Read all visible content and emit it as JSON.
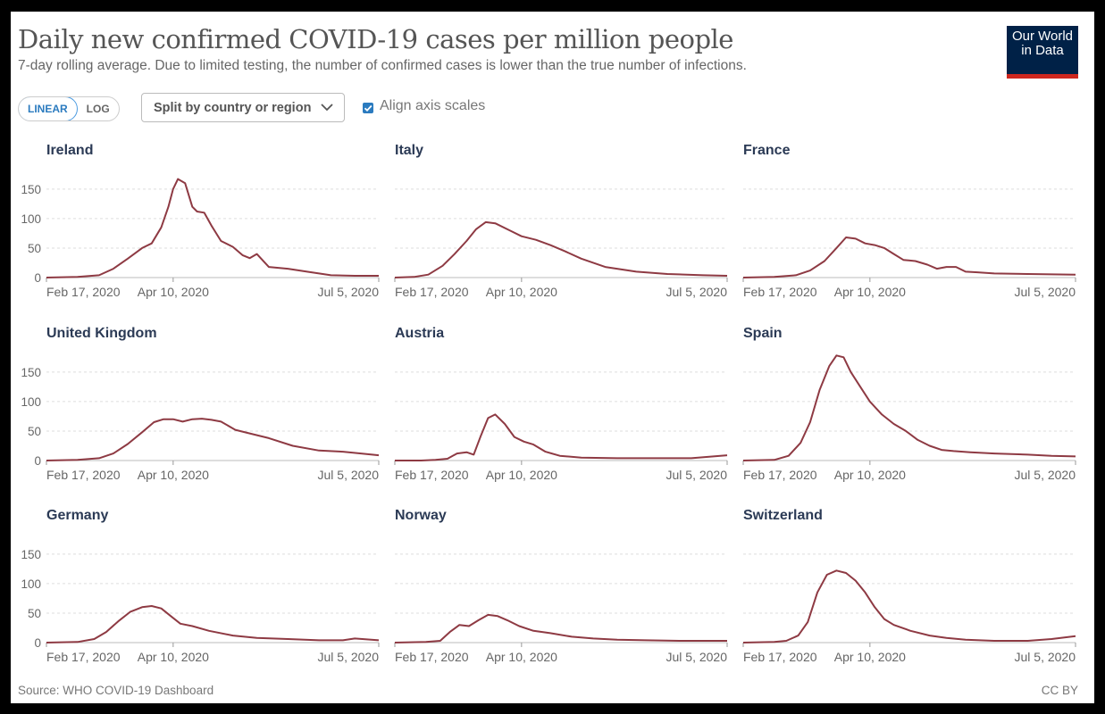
{
  "header": {
    "title": "Daily new confirmed COVID-19 cases per million people",
    "subtitle": "7-day rolling average. Due to limited testing, the number of confirmed cases is lower than the true number of infections."
  },
  "logo": {
    "line1": "Our World",
    "line2": "in Data"
  },
  "controls": {
    "linear_label": "LINEAR",
    "log_label": "LOG",
    "split_label": "Split by country or region",
    "align_label": "Align axis scales",
    "align_checked": true
  },
  "footer": {
    "source": "Source: WHO COVID-19 Dashboard",
    "license": "CC BY"
  },
  "colors": {
    "line": "#8e3a43",
    "grid": "#dddddd",
    "facet_title": "#2b3a55",
    "tick": "#666666"
  },
  "chart_data": {
    "type": "line",
    "ylim": [
      0,
      180
    ],
    "yticks": [
      0,
      50,
      100,
      150
    ],
    "xlim": [
      "2020-02-17",
      "2020-07-05"
    ],
    "xticks": [
      "Feb 17, 2020",
      "Apr 10, 2020",
      "Jul 5, 2020"
    ],
    "grid": true,
    "series": [
      {
        "name": "Ireland",
        "x": [
          "2020-02-17",
          "2020-03-01",
          "2020-03-10",
          "2020-03-16",
          "2020-03-22",
          "2020-03-28",
          "2020-04-01",
          "2020-04-05",
          "2020-04-08",
          "2020-04-10",
          "2020-04-12",
          "2020-04-15",
          "2020-04-18",
          "2020-04-20",
          "2020-04-23",
          "2020-04-26",
          "2020-04-30",
          "2020-05-05",
          "2020-05-09",
          "2020-05-12",
          "2020-05-15",
          "2020-05-20",
          "2020-05-28",
          "2020-06-05",
          "2020-06-15",
          "2020-06-25",
          "2020-07-05"
        ],
        "y": [
          0,
          1,
          4,
          15,
          32,
          50,
          58,
          85,
          120,
          150,
          167,
          160,
          120,
          112,
          110,
          88,
          62,
          52,
          38,
          33,
          40,
          18,
          15,
          10,
          4,
          3,
          3
        ]
      },
      {
        "name": "Italy",
        "x": [
          "2020-02-17",
          "2020-02-25",
          "2020-03-02",
          "2020-03-08",
          "2020-03-13",
          "2020-03-18",
          "2020-03-22",
          "2020-03-26",
          "2020-03-30",
          "2020-04-05",
          "2020-04-10",
          "2020-04-16",
          "2020-04-22",
          "2020-04-28",
          "2020-05-05",
          "2020-05-15",
          "2020-05-28",
          "2020-06-10",
          "2020-06-25",
          "2020-07-05"
        ],
        "y": [
          0,
          1,
          5,
          20,
          40,
          62,
          82,
          94,
          92,
          80,
          70,
          64,
          55,
          45,
          32,
          18,
          10,
          6,
          4,
          3
        ]
      },
      {
        "name": "France",
        "x": [
          "2020-02-17",
          "2020-03-01",
          "2020-03-10",
          "2020-03-16",
          "2020-03-22",
          "2020-03-27",
          "2020-03-31",
          "2020-04-04",
          "2020-04-08",
          "2020-04-12",
          "2020-04-16",
          "2020-04-20",
          "2020-04-24",
          "2020-04-29",
          "2020-05-04",
          "2020-05-08",
          "2020-05-12",
          "2020-05-16",
          "2020-05-20",
          "2020-05-25",
          "2020-06-01",
          "2020-06-15",
          "2020-07-05"
        ],
        "y": [
          0,
          1,
          4,
          12,
          28,
          50,
          68,
          66,
          58,
          55,
          50,
          40,
          30,
          28,
          22,
          15,
          18,
          18,
          10,
          9,
          7,
          6,
          5
        ]
      },
      {
        "name": "United Kingdom",
        "x": [
          "2020-02-17",
          "2020-03-01",
          "2020-03-10",
          "2020-03-16",
          "2020-03-22",
          "2020-03-28",
          "2020-04-02",
          "2020-04-06",
          "2020-04-10",
          "2020-04-14",
          "2020-04-18",
          "2020-04-22",
          "2020-04-26",
          "2020-04-30",
          "2020-05-06",
          "2020-05-12",
          "2020-05-20",
          "2020-05-30",
          "2020-06-10",
          "2020-06-20",
          "2020-07-05"
        ],
        "y": [
          0,
          1,
          4,
          12,
          28,
          48,
          65,
          70,
          70,
          66,
          70,
          71,
          69,
          66,
          52,
          46,
          38,
          25,
          17,
          15,
          9
        ]
      },
      {
        "name": "Austria",
        "x": [
          "2020-02-17",
          "2020-02-28",
          "2020-03-05",
          "2020-03-10",
          "2020-03-14",
          "2020-03-18",
          "2020-03-21",
          "2020-03-24",
          "2020-03-27",
          "2020-03-30",
          "2020-04-03",
          "2020-04-07",
          "2020-04-11",
          "2020-04-15",
          "2020-04-20",
          "2020-04-26",
          "2020-05-05",
          "2020-05-20",
          "2020-06-05",
          "2020-06-20",
          "2020-07-05"
        ],
        "y": [
          0,
          0,
          1,
          3,
          12,
          14,
          10,
          42,
          72,
          78,
          62,
          40,
          32,
          27,
          15,
          8,
          5,
          4,
          4,
          4,
          9
        ]
      },
      {
        "name": "Spain",
        "x": [
          "2020-02-17",
          "2020-03-01",
          "2020-03-07",
          "2020-03-12",
          "2020-03-16",
          "2020-03-20",
          "2020-03-24",
          "2020-03-27",
          "2020-03-30",
          "2020-04-02",
          "2020-04-06",
          "2020-04-10",
          "2020-04-15",
          "2020-04-20",
          "2020-04-25",
          "2020-04-30",
          "2020-05-05",
          "2020-05-10",
          "2020-05-15",
          "2020-05-22",
          "2020-06-01",
          "2020-06-15",
          "2020-06-25",
          "2020-07-05"
        ],
        "y": [
          0,
          1,
          8,
          30,
          65,
          120,
          160,
          178,
          175,
          150,
          125,
          100,
          78,
          62,
          50,
          35,
          25,
          18,
          16,
          14,
          12,
          10,
          8,
          7
        ]
      },
      {
        "name": "Germany",
        "x": [
          "2020-02-17",
          "2020-03-01",
          "2020-03-08",
          "2020-03-13",
          "2020-03-18",
          "2020-03-23",
          "2020-03-28",
          "2020-04-01",
          "2020-04-05",
          "2020-04-09",
          "2020-04-13",
          "2020-04-18",
          "2020-04-25",
          "2020-05-05",
          "2020-05-15",
          "2020-05-28",
          "2020-06-10",
          "2020-06-20",
          "2020-06-25",
          "2020-07-05"
        ],
        "y": [
          0,
          1,
          6,
          18,
          36,
          52,
          60,
          62,
          58,
          45,
          32,
          28,
          20,
          12,
          8,
          6,
          4,
          4,
          7,
          4
        ]
      },
      {
        "name": "Norway",
        "x": [
          "2020-02-17",
          "2020-03-01",
          "2020-03-07",
          "2020-03-11",
          "2020-03-15",
          "2020-03-19",
          "2020-03-23",
          "2020-03-27",
          "2020-03-31",
          "2020-04-04",
          "2020-04-09",
          "2020-04-15",
          "2020-04-22",
          "2020-05-01",
          "2020-05-10",
          "2020-05-20",
          "2020-06-01",
          "2020-06-15",
          "2020-07-05"
        ],
        "y": [
          0,
          1,
          3,
          18,
          30,
          28,
          38,
          47,
          45,
          38,
          28,
          20,
          16,
          10,
          7,
          5,
          4,
          3,
          3
        ]
      },
      {
        "name": "Switzerland",
        "x": [
          "2020-02-17",
          "2020-03-01",
          "2020-03-06",
          "2020-03-11",
          "2020-03-15",
          "2020-03-19",
          "2020-03-23",
          "2020-03-27",
          "2020-03-31",
          "2020-04-04",
          "2020-04-08",
          "2020-04-12",
          "2020-04-16",
          "2020-04-20",
          "2020-04-27",
          "2020-05-05",
          "2020-05-12",
          "2020-05-20",
          "2020-06-01",
          "2020-06-15",
          "2020-06-25",
          "2020-07-05"
        ],
        "y": [
          0,
          1,
          3,
          12,
          35,
          85,
          115,
          122,
          118,
          105,
          85,
          60,
          40,
          30,
          20,
          12,
          8,
          5,
          3,
          3,
          6,
          11
        ]
      }
    ]
  }
}
